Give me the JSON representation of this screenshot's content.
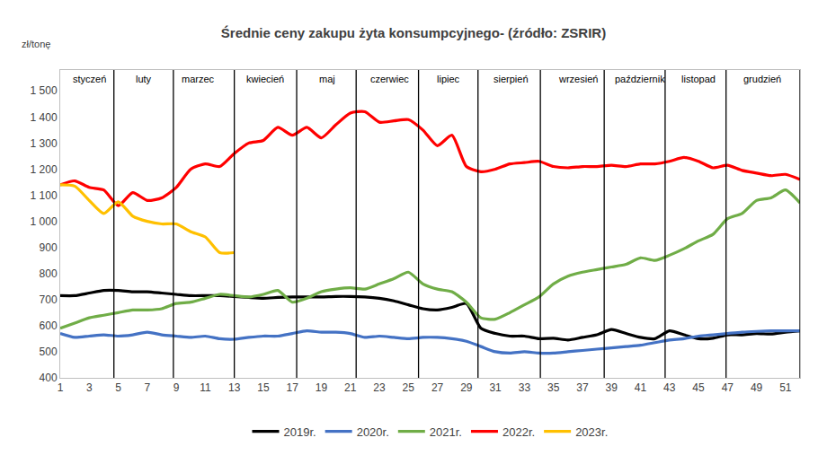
{
  "chart_data": {
    "type": "line",
    "title": "Średnie ceny zakupu żyta konsumpcyjnego- (źródło: ZSRIR)",
    "ylabel": "zł/tonę",
    "x": [
      1,
      2,
      3,
      4,
      5,
      6,
      7,
      8,
      9,
      10,
      11,
      12,
      13,
      14,
      15,
      16,
      17,
      18,
      19,
      20,
      21,
      22,
      23,
      24,
      25,
      26,
      27,
      28,
      29,
      30,
      31,
      32,
      33,
      34,
      35,
      36,
      37,
      38,
      39,
      40,
      41,
      42,
      43,
      44,
      45,
      46,
      47,
      48,
      49,
      50,
      51,
      52
    ],
    "series": [
      {
        "name": "2019r.",
        "color": "#000000",
        "values": [
          715,
          715,
          725,
          735,
          735,
          730,
          730,
          725,
          720,
          715,
          715,
          715,
          712,
          708,
          705,
          708,
          710,
          710,
          710,
          712,
          712,
          710,
          705,
          695,
          680,
          665,
          660,
          670,
          685,
          590,
          570,
          560,
          560,
          550,
          552,
          545,
          555,
          565,
          585,
          570,
          555,
          550,
          580,
          565,
          550,
          552,
          565,
          565,
          570,
          568,
          575,
          580
        ]
      },
      {
        "name": "2020r.",
        "color": "#4472c4",
        "values": [
          570,
          555,
          560,
          565,
          560,
          565,
          575,
          565,
          560,
          555,
          560,
          550,
          548,
          555,
          560,
          560,
          570,
          580,
          575,
          575,
          570,
          555,
          560,
          555,
          550,
          555,
          555,
          550,
          540,
          520,
          500,
          495,
          500,
          495,
          495,
          500,
          505,
          510,
          515,
          520,
          525,
          535,
          545,
          550,
          560,
          565,
          570,
          575,
          578,
          580,
          580,
          580
        ]
      },
      {
        "name": "2021r.",
        "color": "#70ad47",
        "values": [
          590,
          610,
          630,
          640,
          650,
          660,
          660,
          665,
          685,
          690,
          705,
          720,
          715,
          710,
          720,
          735,
          690,
          705,
          730,
          740,
          745,
          740,
          760,
          780,
          805,
          760,
          740,
          730,
          690,
          630,
          625,
          650,
          680,
          710,
          760,
          790,
          805,
          815,
          825,
          835,
          860,
          850,
          870,
          895,
          925,
          950,
          1010,
          1030,
          1080,
          1090,
          1120,
          1070
        ]
      },
      {
        "name": "2022r.",
        "color": "#ff0000",
        "values": [
          1140,
          1155,
          1130,
          1120,
          1060,
          1110,
          1080,
          1090,
          1130,
          1200,
          1220,
          1210,
          1260,
          1300,
          1310,
          1360,
          1330,
          1360,
          1320,
          1370,
          1415,
          1420,
          1380,
          1385,
          1390,
          1350,
          1290,
          1330,
          1210,
          1190,
          1200,
          1220,
          1225,
          1230,
          1210,
          1205,
          1210,
          1210,
          1215,
          1210,
          1220,
          1220,
          1230,
          1245,
          1230,
          1205,
          1215,
          1195,
          1185,
          1175,
          1180,
          1160
        ]
      },
      {
        "name": "2023r.",
        "color": "#ffc000",
        "values": [
          1140,
          1135,
          1080,
          1030,
          1075,
          1020,
          1000,
          990,
          990,
          960,
          940,
          880,
          880,
          null,
          null,
          null,
          null,
          null,
          null,
          null,
          null,
          null,
          null,
          null,
          null,
          null,
          null,
          null,
          null,
          null,
          null,
          null,
          null,
          null,
          null,
          null,
          null,
          null,
          null,
          null,
          null,
          null,
          null,
          null,
          null,
          null,
          null,
          null,
          null,
          null,
          null,
          null
        ]
      }
    ],
    "xlim": [
      1,
      52
    ],
    "xticks": [
      1,
      3,
      5,
      7,
      9,
      11,
      13,
      15,
      17,
      19,
      21,
      23,
      25,
      27,
      29,
      31,
      33,
      35,
      37,
      39,
      41,
      43,
      45,
      47,
      49,
      51
    ],
    "ylim": [
      400,
      1580
    ],
    "yticks": [
      400,
      500,
      600,
      700,
      800,
      900,
      {
        "value": 1000,
        "label": "1 000"
      },
      {
        "value": 1100,
        "label": "1 100"
      },
      {
        "value": 1200,
        "label": "1 200"
      },
      {
        "value": 1300,
        "label": "1 300"
      },
      {
        "value": 1400,
        "label": "1 400"
      },
      {
        "value": 1500,
        "label": "1 500"
      }
    ],
    "month_labels": [
      {
        "text": "styczeń",
        "x": 3.0
      },
      {
        "text": "luty",
        "x": 6.75
      },
      {
        "text": "marzec",
        "x": 10.5
      },
      {
        "text": "kwiecień",
        "x": 15.1
      },
      {
        "text": "maj",
        "x": 19.4
      },
      {
        "text": "czerwiec",
        "x": 23.7
      },
      {
        "text": "lipiec",
        "x": 27.8
      },
      {
        "text": "sierpień",
        "x": 32.1
      },
      {
        "text": "wrzesień",
        "x": 36.7
      },
      {
        "text": "październik",
        "x": 41.0
      },
      {
        "text": "listopad",
        "x": 45.0
      },
      {
        "text": "grudzień",
        "x": 49.4
      }
    ],
    "month_boundaries": [
      4.7,
      8.8,
      13,
      17.3,
      21.4,
      25.7,
      29.8,
      34.1,
      38.5,
      42.7,
      46.9,
      52
    ],
    "grid": false,
    "legend": "bottom"
  }
}
